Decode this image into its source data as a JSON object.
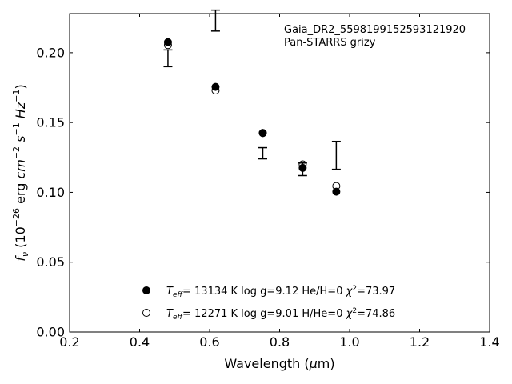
{
  "chart_data": {
    "type": "scatter",
    "xlabel": "Wavelength (μm)",
    "ylabel": "f_ν (10^-26 erg cm^-2 s^-1 Hz^-1)",
    "xlim": [
      0.2,
      1.4
    ],
    "ylim": [
      0.0,
      0.228
    ],
    "x_ticks": [
      "0.2",
      "0.4",
      "0.6",
      "0.8",
      "1.0",
      "1.2",
      "1.4"
    ],
    "y_ticks": [
      "0.00",
      "0.05",
      "0.10",
      "0.15",
      "0.20"
    ],
    "annotation": [
      "Gaia_DR2_5598199152593121920",
      "Pan-STARRS grizy"
    ],
    "observed": [
      {
        "x": 0.481,
        "y": 0.196,
        "yerr": 0.006
      },
      {
        "x": 0.617,
        "y": 0.223,
        "yerr": 0.0075
      },
      {
        "x": 0.752,
        "y": 0.128,
        "yerr": 0.004
      },
      {
        "x": 0.866,
        "y": 0.1165,
        "yerr": 0.0045
      },
      {
        "x": 0.962,
        "y": 0.1265,
        "yerr": 0.01
      }
    ],
    "series": [
      {
        "marker": "filled",
        "legend": {
          "teff": "13134",
          "logg": "9.12",
          "comp": "He/H=0",
          "chi2": "73.97"
        },
        "x": [
          0.481,
          0.617,
          0.752,
          0.866,
          0.962
        ],
        "y": [
          0.2075,
          0.1755,
          0.1425,
          0.1175,
          0.1005
        ]
      },
      {
        "marker": "open",
        "legend": {
          "teff": "12271",
          "logg": "9.01",
          "comp": "H/He=0",
          "chi2": "74.86"
        },
        "x": [
          0.481,
          0.617,
          0.752,
          0.866,
          0.962
        ],
        "y": [
          0.2055,
          0.173,
          0.1425,
          0.12,
          0.1045
        ]
      }
    ]
  }
}
